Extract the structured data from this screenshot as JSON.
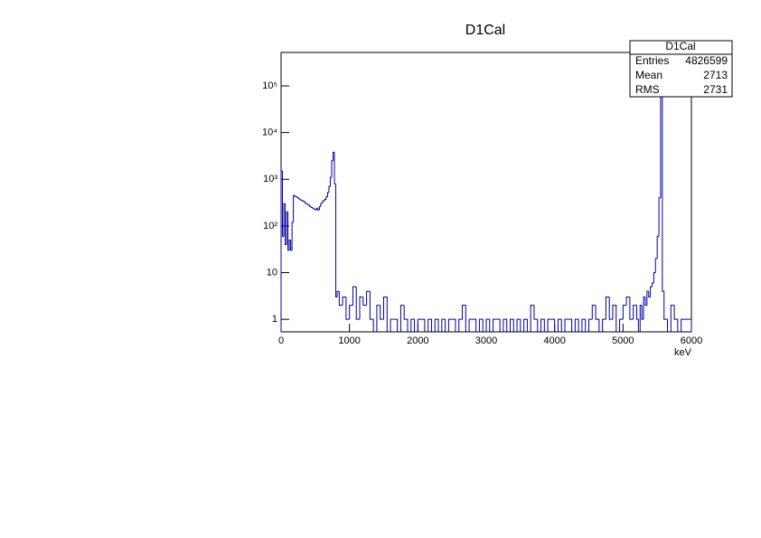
{
  "chart_data": {
    "type": "histogram",
    "title": "D1Cal",
    "x_label": "keV",
    "color": "#000099",
    "log_y": true,
    "xlim": [
      0,
      6000
    ],
    "xticks": [
      0,
      1000,
      2000,
      3000,
      4000,
      5000,
      6000
    ],
    "ylim": [
      0.54,
      520000
    ],
    "yticks": [
      1,
      10,
      {
        "value": 100,
        "label": "10²"
      },
      {
        "value": 1000,
        "label": "10³"
      },
      {
        "value": 10000,
        "label": "10⁴"
      },
      {
        "value": 100000,
        "label": "10⁵"
      }
    ],
    "stats": {
      "title": "D1Cal",
      "rows": [
        {
          "label": "Entries",
          "value": 4826599
        },
        {
          "label": "Mean",
          "value": 2713
        },
        {
          "label": "RMS",
          "value": 2731
        }
      ]
    },
    "bins": [
      0,
      20,
      40,
      60,
      80,
      100,
      120,
      140,
      160,
      180,
      200,
      220,
      240,
      260,
      280,
      300,
      320,
      340,
      360,
      380,
      400,
      420,
      440,
      460,
      480,
      500,
      520,
      540,
      560,
      580,
      600,
      620,
      640,
      660,
      680,
      700,
      720,
      740,
      760,
      780,
      800,
      820,
      850,
      900,
      950,
      1000,
      1050,
      1100,
      1150,
      1200,
      1250,
      1300,
      1350,
      1400,
      1450,
      1500,
      1550,
      1600,
      1650,
      1700,
      1750,
      1800,
      1850,
      1900,
      1950,
      2000,
      2050,
      2100,
      2150,
      2200,
      2250,
      2300,
      2350,
      2400,
      2450,
      2500,
      2550,
      2600,
      2650,
      2700,
      2750,
      2800,
      2850,
      2900,
      2950,
      3000,
      3050,
      3100,
      3150,
      3200,
      3250,
      3300,
      3350,
      3400,
      3450,
      3500,
      3550,
      3600,
      3650,
      3700,
      3750,
      3800,
      3850,
      3900,
      3950,
      4000,
      4050,
      4100,
      4150,
      4200,
      4250,
      4300,
      4350,
      4400,
      4450,
      4500,
      4550,
      4600,
      4650,
      4700,
      4750,
      4800,
      4850,
      4900,
      4950,
      5000,
      5050,
      5100,
      5150,
      5200,
      5225,
      5250,
      5275,
      5300,
      5325,
      5350,
      5375,
      5400,
      5425,
      5450,
      5475,
      5500,
      5525,
      5550,
      5575,
      5600,
      5650,
      5700,
      5750,
      5800,
      5850,
      5900,
      5950,
      6000
    ],
    "values": [
      1500,
      60,
      300,
      40,
      200,
      30,
      50,
      30,
      120,
      450,
      430,
      420,
      400,
      380,
      360,
      350,
      340,
      320,
      300,
      290,
      280,
      260,
      250,
      240,
      230,
      220,
      240,
      220,
      260,
      300,
      330,
      350,
      370,
      420,
      520,
      700,
      1100,
      2500,
      3800,
      800,
      3,
      4,
      2,
      3,
      1,
      2,
      5,
      1,
      3,
      2,
      4,
      1,
      null,
      2,
      1,
      3,
      null,
      1,
      1,
      null,
      2,
      1,
      null,
      1,
      null,
      1,
      1,
      null,
      1,
      null,
      1,
      null,
      1,
      null,
      1,
      1,
      null,
      1,
      2,
      null,
      1,
      1,
      null,
      1,
      null,
      1,
      null,
      1,
      1,
      null,
      1,
      null,
      1,
      null,
      1,
      null,
      1,
      null,
      2,
      1,
      null,
      1,
      null,
      1,
      1,
      null,
      1,
      null,
      1,
      1,
      null,
      1,
      null,
      1,
      null,
      1,
      2,
      1,
      null,
      1,
      3,
      1,
      2,
      null,
      1,
      2,
      3,
      1,
      2,
      1,
      null,
      2,
      1,
      3,
      2,
      4,
      3,
      5,
      6,
      10,
      20,
      60,
      400,
      300000,
      4,
      1,
      null,
      2,
      1,
      null,
      1,
      1,
      1
    ]
  }
}
